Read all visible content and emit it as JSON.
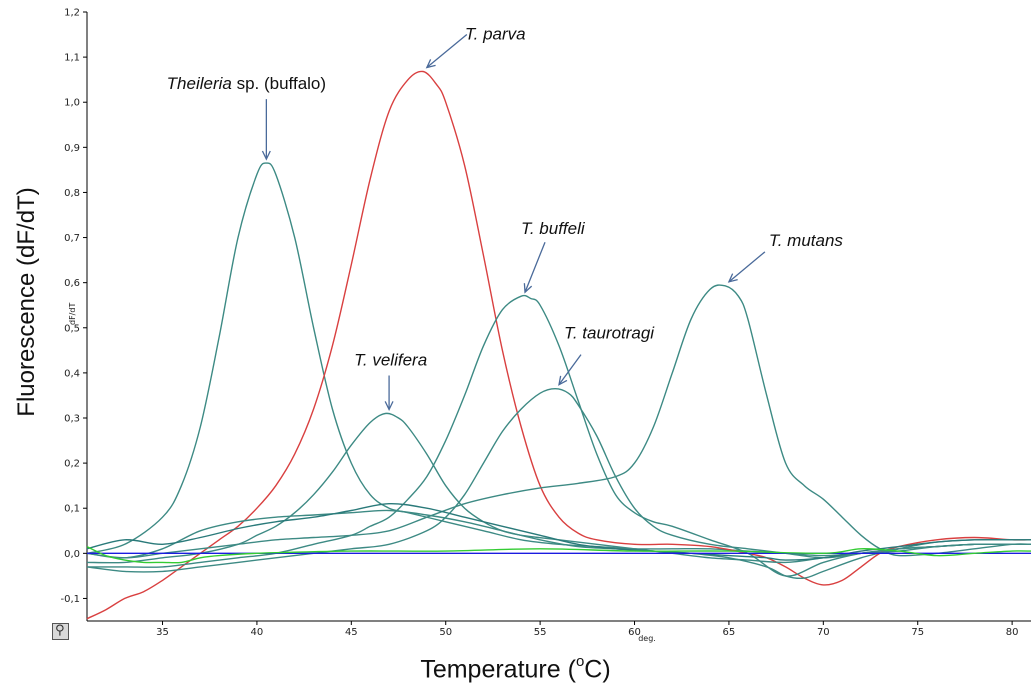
{
  "chart_data": {
    "type": "line",
    "y_axis_unit_label": "dF/dT",
    "x_axis_unit_label": "deg.",
    "ylabel": "Fluorescence (dF/dT)",
    "xlabel_prefix": "Temperature (",
    "xlabel_sup": "o",
    "xlabel_suffix": "C)",
    "xlim": [
      31,
      81
    ],
    "ylim": [
      -0.15,
      1.2
    ],
    "x_ticks": [
      35,
      40,
      45,
      50,
      55,
      60,
      65,
      70,
      75,
      80
    ],
    "x_tick_labels": [
      "35",
      "40",
      "45",
      "50",
      "55",
      "60",
      "65",
      "70",
      "75",
      "80"
    ],
    "y_ticks": [
      -0.1,
      0.0,
      0.1,
      0.2,
      0.3,
      0.4,
      0.5,
      0.6,
      0.7,
      0.8,
      0.9,
      1.0,
      1.1,
      1.2
    ],
    "y_tick_labels": [
      "-0,1",
      "0,0",
      "0,1",
      "0,2",
      "0,3",
      "0,4",
      "0,5",
      "0,6",
      "0,7",
      "0,8",
      "0,9",
      "1,0",
      "1,1",
      "1,2"
    ],
    "grid": false,
    "series": [
      {
        "color": "#3d8a84",
        "x": [
          31,
          33,
          35,
          36,
          37,
          38,
          39,
          40,
          40.5,
          41,
          42,
          43,
          44,
          45,
          46,
          47,
          48,
          50,
          52,
          54,
          56,
          58,
          60,
          62,
          64,
          66,
          68,
          70,
          72,
          74,
          76,
          78,
          80,
          81
        ],
        "y": [
          0.0,
          0.02,
          0.08,
          0.15,
          0.28,
          0.48,
          0.7,
          0.84,
          0.865,
          0.84,
          0.7,
          0.5,
          0.32,
          0.2,
          0.13,
          0.1,
          0.09,
          0.07,
          0.05,
          0.03,
          0.02,
          0.015,
          0.01,
          0.01,
          0.01,
          0.005,
          0.0,
          -0.005,
          0.0,
          0.005,
          0.015,
          0.02,
          0.02,
          0.02
        ]
      },
      {
        "color": "#d94040",
        "x": [
          31,
          32,
          33,
          34,
          35,
          36,
          37,
          38,
          39,
          40,
          41,
          42,
          43,
          44,
          45,
          46,
          47,
          48,
          48.8,
          49.5,
          50,
          51,
          52,
          53,
          54,
          55,
          56,
          57,
          58,
          60,
          62,
          64,
          66,
          67,
          68,
          69,
          70,
          71,
          72,
          73,
          74,
          76,
          78,
          80,
          81
        ],
        "y": [
          -0.145,
          -0.125,
          -0.1,
          -0.085,
          -0.06,
          -0.03,
          0.0,
          0.03,
          0.06,
          0.1,
          0.15,
          0.22,
          0.32,
          0.46,
          0.64,
          0.83,
          0.98,
          1.05,
          1.068,
          1.04,
          1.0,
          0.86,
          0.66,
          0.45,
          0.28,
          0.15,
          0.08,
          0.045,
          0.03,
          0.02,
          0.02,
          0.015,
          0.0,
          -0.01,
          -0.03,
          -0.055,
          -0.07,
          -0.06,
          -0.03,
          0.0,
          0.015,
          0.03,
          0.035,
          0.03,
          0.03
        ]
      },
      {
        "color": "#3d8a84",
        "x": [
          31,
          33,
          35,
          37,
          39,
          40,
          41,
          42,
          43,
          44,
          45,
          46,
          46.8,
          47.5,
          48,
          49,
          50,
          51,
          52,
          53,
          54,
          56,
          58,
          60,
          62,
          64,
          66,
          68,
          70,
          72,
          74,
          76,
          78,
          80,
          81
        ],
        "y": [
          -0.02,
          -0.02,
          -0.01,
          0.0,
          0.02,
          0.04,
          0.06,
          0.09,
          0.13,
          0.18,
          0.24,
          0.29,
          0.31,
          0.3,
          0.28,
          0.22,
          0.15,
          0.1,
          0.07,
          0.05,
          0.04,
          0.03,
          0.02,
          0.01,
          0.0,
          -0.01,
          -0.015,
          -0.02,
          -0.01,
          0.0,
          0.01,
          0.015,
          0.02,
          0.02,
          0.02
        ]
      },
      {
        "color": "#3d8a84",
        "x": [
          31,
          33,
          35,
          37,
          39,
          41,
          43,
          45,
          46,
          47,
          48,
          49,
          50,
          51,
          52,
          53,
          54,
          54.5,
          55,
          56,
          57,
          58,
          59,
          60,
          61,
          62,
          64,
          66,
          68,
          70,
          72,
          74,
          76,
          78,
          80,
          81
        ],
        "y": [
          -0.03,
          -0.03,
          -0.03,
          -0.02,
          -0.01,
          0.0,
          0.02,
          0.04,
          0.06,
          0.08,
          0.12,
          0.17,
          0.25,
          0.35,
          0.46,
          0.54,
          0.57,
          0.565,
          0.55,
          0.46,
          0.34,
          0.22,
          0.13,
          0.09,
          0.07,
          0.06,
          0.03,
          0.0,
          -0.05,
          -0.02,
          0.0,
          0.01,
          0.015,
          0.02,
          0.02,
          0.02
        ]
      },
      {
        "color": "#3d8a84",
        "x": [
          31,
          33,
          35,
          37,
          39,
          41,
          43,
          45,
          47,
          49,
          50,
          51,
          52,
          53,
          54,
          55,
          55.8,
          56.5,
          57,
          58,
          59,
          60,
          61,
          62,
          64,
          66,
          68,
          70,
          72,
          74,
          76,
          78,
          80,
          81
        ],
        "y": [
          -0.03,
          -0.04,
          -0.04,
          -0.03,
          -0.02,
          -0.01,
          0.0,
          0.01,
          0.02,
          0.05,
          0.08,
          0.13,
          0.2,
          0.27,
          0.32,
          0.355,
          0.365,
          0.355,
          0.33,
          0.26,
          0.17,
          0.1,
          0.06,
          0.04,
          0.02,
          0.01,
          0.0,
          -0.01,
          0.0,
          0.01,
          0.015,
          0.02,
          0.02,
          0.02
        ]
      },
      {
        "color": "#3d8a84",
        "x": [
          31,
          33,
          35,
          37,
          39,
          41,
          43,
          45,
          47,
          49,
          51,
          53,
          55,
          57,
          59,
          60,
          61,
          62,
          63,
          64,
          64.8,
          65.5,
          66,
          67,
          68,
          69,
          70,
          71,
          72,
          73,
          74,
          76,
          78,
          80,
          81
        ],
        "y": [
          0.0,
          -0.01,
          0.0,
          0.01,
          0.02,
          0.03,
          0.035,
          0.04,
          0.05,
          0.08,
          0.11,
          0.13,
          0.145,
          0.155,
          0.17,
          0.2,
          0.28,
          0.4,
          0.52,
          0.585,
          0.593,
          0.57,
          0.52,
          0.35,
          0.2,
          0.15,
          0.12,
          0.08,
          0.04,
          0.01,
          -0.005,
          0.0,
          0.01,
          0.02,
          0.02
        ]
      },
      {
        "color": "#3d8a84",
        "x": [
          31,
          33,
          35,
          37,
          39,
          41,
          43,
          45,
          47,
          49,
          51,
          53,
          55,
          57,
          59,
          61,
          63,
          65,
          67,
          68,
          69,
          70,
          72,
          74,
          76,
          78,
          80,
          81
        ],
        "y": [
          0.0,
          -0.01,
          0.01,
          0.05,
          0.07,
          0.08,
          0.085,
          0.09,
          0.095,
          0.085,
          0.07,
          0.05,
          0.03,
          0.015,
          0.01,
          0.005,
          0.0,
          -0.01,
          -0.03,
          -0.05,
          -0.055,
          -0.04,
          -0.01,
          0.01,
          0.025,
          0.03,
          0.03,
          0.03
        ]
      },
      {
        "color": "#2a7a7a",
        "x": [
          31,
          33,
          35,
          37,
          39,
          41,
          43,
          45,
          47,
          49,
          51,
          53,
          55,
          57,
          59,
          61,
          63,
          65,
          67,
          68,
          70,
          72,
          74,
          76,
          78,
          80,
          81
        ],
        "y": [
          0.01,
          0.03,
          0.02,
          0.035,
          0.055,
          0.07,
          0.08,
          0.095,
          0.11,
          0.1,
          0.08,
          0.06,
          0.04,
          0.02,
          0.01,
          0.005,
          0.0,
          -0.005,
          -0.01,
          -0.015,
          -0.01,
          0.005,
          0.015,
          0.025,
          0.03,
          0.03,
          0.03
        ]
      },
      {
        "color": "#1c1ce0",
        "x": [
          31,
          40,
          50,
          60,
          70,
          81
        ],
        "y": [
          0.0,
          0.0,
          0.0,
          0.0,
          0.0,
          0.0
        ]
      },
      {
        "color": "#33cc33",
        "x": [
          31,
          32,
          33,
          34,
          35,
          36,
          37,
          38,
          40,
          45,
          50,
          55,
          60,
          65,
          70,
          72,
          74,
          76,
          78,
          80,
          81
        ],
        "y": [
          0.015,
          -0.005,
          -0.015,
          -0.02,
          -0.02,
          -0.02,
          -0.01,
          -0.005,
          0.0,
          0.005,
          0.005,
          0.01,
          0.005,
          0.005,
          0.0,
          0.01,
          0.005,
          -0.005,
          0.0,
          0.005,
          0.005
        ]
      }
    ],
    "annotations": [
      {
        "text_pre": "Theileria",
        "text_post": " sp. (buffalo)",
        "x": 40.5,
        "y": 0.865,
        "anchor": "above"
      },
      {
        "text_pre": "T. parva",
        "text_post": "",
        "x": 49.0,
        "y": 1.068,
        "anchor": "upper-right"
      },
      {
        "text_pre": "T. velifera",
        "text_post": "",
        "x": 47.0,
        "y": 0.31,
        "anchor": "above"
      },
      {
        "text_pre": "T. buffeli",
        "text_post": "",
        "x": 54.2,
        "y": 0.57,
        "anchor": "above-right"
      },
      {
        "text_pre": "T. taurotragi",
        "text_post": "",
        "x": 56.0,
        "y": 0.365,
        "anchor": "upper-right"
      },
      {
        "text_pre": "T. mutans",
        "text_post": "",
        "x": 65.0,
        "y": 0.593,
        "anchor": "upper-right"
      }
    ]
  }
}
